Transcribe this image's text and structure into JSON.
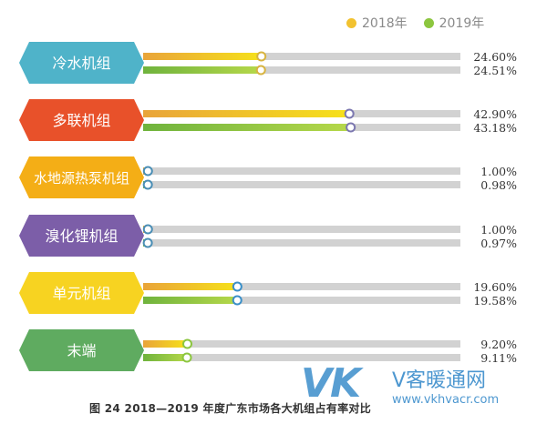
{
  "legend": {
    "items": [
      {
        "label": "2018年",
        "color": "#f2c230"
      },
      {
        "label": "2019年",
        "color": "#8cc63f"
      }
    ]
  },
  "caption": "图 24 2018—2019 年度广东市场各大机组占有率对比",
  "watermark": {
    "logo": "VK",
    "name": "V客暖通网",
    "url": "www.vkhvacr.com"
  },
  "chart_data": {
    "type": "bar",
    "orientation": "horizontal",
    "xlim": [
      0,
      100
    ],
    "unit": "%",
    "categories": [
      "冷水机组",
      "多联机组",
      "水地源热泵机组",
      "溴化锂机组",
      "单元机组",
      "末端"
    ],
    "category_colors": [
      "#4fb3c9",
      "#e8512a",
      "#f4ae16",
      "#7c5ea8",
      "#f7d321",
      "#5fab60"
    ],
    "series": [
      {
        "name": "2018年",
        "values": [
          24.6,
          42.9,
          1.0,
          1.0,
          19.6,
          9.2
        ],
        "labels": [
          "24.60%",
          "42.90%",
          "1.00%",
          "1.00%",
          "19.60%",
          "9.20%"
        ]
      },
      {
        "name": "2019年",
        "values": [
          24.51,
          43.18,
          0.98,
          0.97,
          19.58,
          9.11
        ],
        "labels": [
          "24.51%",
          "43.18%",
          "0.98%",
          "0.97%",
          "19.58%",
          "9.11%"
        ]
      }
    ],
    "marker_colors": [
      "#d8b440",
      "#7c78b0",
      "#4a8eb5",
      "#4a8eb5",
      "#3a8fc8",
      "#8cc63f"
    ]
  }
}
